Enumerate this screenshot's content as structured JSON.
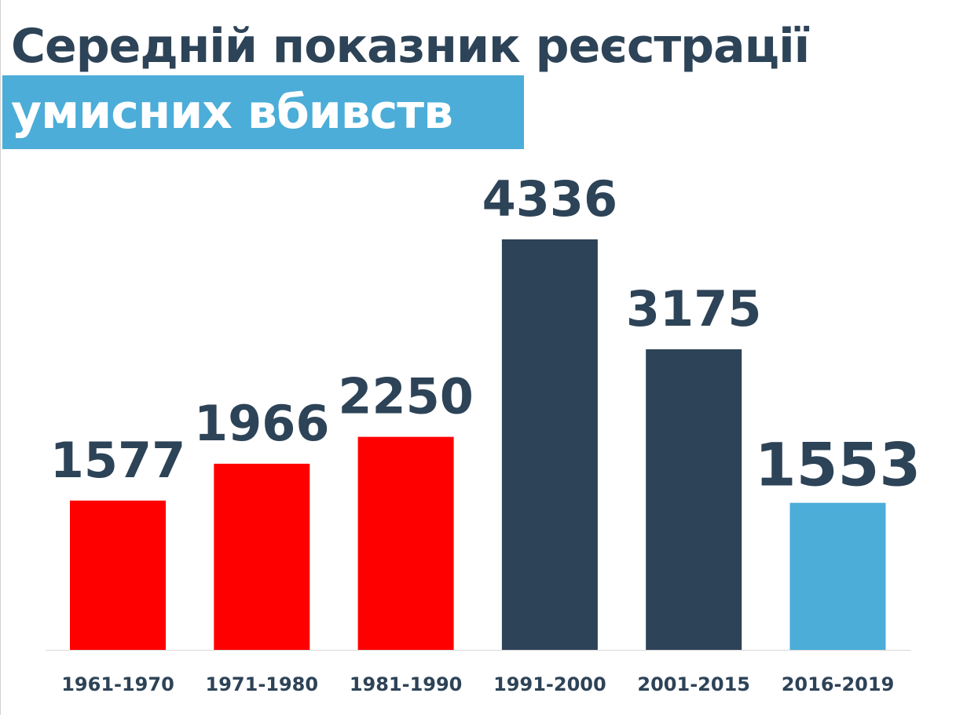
{
  "title": {
    "line1": "Середній показник реєстрації",
    "line2": "умисних вбивств",
    "line1_color": "#2d4357",
    "line2_color": "#ffffff",
    "band_color": "#4badd8"
  },
  "chart_data": {
    "type": "bar",
    "categories": [
      "1961-1970",
      "1971-1980",
      "1981-1990",
      "1991-2000",
      "2001-2015",
      "2016-2019"
    ],
    "values": [
      1577,
      1966,
      2250,
      4336,
      3175,
      1553
    ],
    "value_labels": [
      "1577",
      "1966",
      "2250",
      "4336",
      "3175",
      "1553"
    ],
    "bar_colors": [
      "#ff0000",
      "#ff0000",
      "#ff0000",
      "#2d4357",
      "#2d4357",
      "#4badd8"
    ],
    "title": "Середній показник реєстрації умисних вбивств",
    "xlabel": "",
    "ylabel": "",
    "grid": false,
    "legend": "none"
  }
}
